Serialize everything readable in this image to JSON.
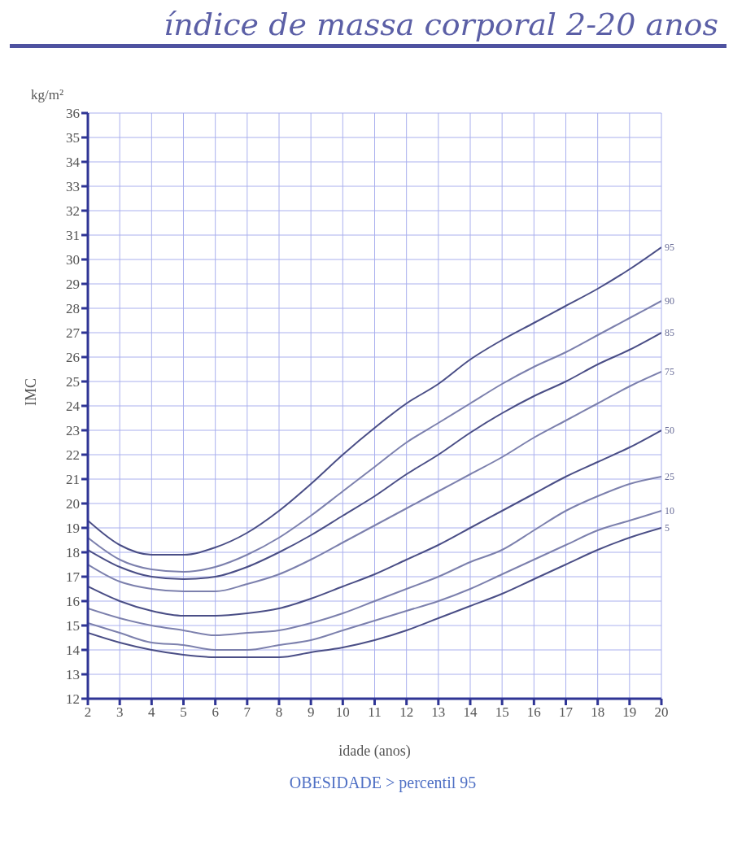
{
  "chart_data": {
    "type": "line",
    "title": "índice de massa corporal 2-20 anos",
    "xlabel": "idade (anos)",
    "ylabel": "IMC",
    "annotations": [
      "kg/m²",
      "OBESIDADE > percentil 95"
    ],
    "x": [
      2,
      3,
      4,
      5,
      6,
      7,
      8,
      9,
      10,
      11,
      12,
      13,
      14,
      15,
      16,
      17,
      18,
      19,
      20
    ],
    "xlim": [
      2,
      20
    ],
    "xticks": [
      2,
      3,
      4,
      5,
      6,
      7,
      8,
      9,
      10,
      11,
      12,
      13,
      14,
      15,
      16,
      17,
      18,
      19,
      20
    ],
    "ylim": [
      12,
      36
    ],
    "yticks": [
      12,
      13,
      14,
      15,
      16,
      17,
      18,
      19,
      20,
      21,
      22,
      23,
      24,
      25,
      26,
      27,
      28,
      29,
      30,
      31,
      32,
      33,
      34,
      35,
      36
    ],
    "grid": true,
    "marker": "none",
    "line_style": "solid",
    "series": [
      {
        "name": "95",
        "color": "#4a4e86",
        "values": [
          19.3,
          18.3,
          17.9,
          17.9,
          18.2,
          18.8,
          19.7,
          20.8,
          22.0,
          23.1,
          24.1,
          24.9,
          25.9,
          26.7,
          27.4,
          28.1,
          28.8,
          29.6,
          30.5
        ]
      },
      {
        "name": "90",
        "color": "#7c80ad",
        "values": [
          18.6,
          17.7,
          17.3,
          17.2,
          17.4,
          17.9,
          18.6,
          19.5,
          20.5,
          21.5,
          22.5,
          23.3,
          24.1,
          24.9,
          25.6,
          26.2,
          26.9,
          27.6,
          28.3
        ]
      },
      {
        "name": "85",
        "color": "#4a4e86",
        "values": [
          18.1,
          17.4,
          17.0,
          16.9,
          17.0,
          17.4,
          18.0,
          18.7,
          19.5,
          20.3,
          21.2,
          22.0,
          22.9,
          23.7,
          24.4,
          25.0,
          25.7,
          26.3,
          27.0
        ]
      },
      {
        "name": "75",
        "color": "#7c80ad",
        "values": [
          17.5,
          16.8,
          16.5,
          16.4,
          16.4,
          16.7,
          17.1,
          17.7,
          18.4,
          19.1,
          19.8,
          20.5,
          21.2,
          21.9,
          22.7,
          23.4,
          24.1,
          24.8,
          25.4
        ]
      },
      {
        "name": "50",
        "color": "#4a4e86",
        "values": [
          16.6,
          16.0,
          15.6,
          15.4,
          15.4,
          15.5,
          15.7,
          16.1,
          16.6,
          17.1,
          17.7,
          18.3,
          19.0,
          19.7,
          20.4,
          21.1,
          21.7,
          22.3,
          23.0
        ]
      },
      {
        "name": "25",
        "color": "#7c80ad",
        "values": [
          15.7,
          15.3,
          15.0,
          14.8,
          14.6,
          14.7,
          14.8,
          15.1,
          15.5,
          16.0,
          16.5,
          17.0,
          17.6,
          18.1,
          18.9,
          19.7,
          20.3,
          20.8,
          21.1
        ]
      },
      {
        "name": "10",
        "color": "#7c80ad",
        "values": [
          15.1,
          14.7,
          14.3,
          14.2,
          14.0,
          14.0,
          14.2,
          14.4,
          14.8,
          15.2,
          15.6,
          16.0,
          16.5,
          17.1,
          17.7,
          18.3,
          18.9,
          19.3,
          19.7
        ]
      },
      {
        "name": "5",
        "color": "#4a4e86",
        "values": [
          14.7,
          14.3,
          14.0,
          13.8,
          13.7,
          13.7,
          13.7,
          13.9,
          14.1,
          14.4,
          14.8,
          15.3,
          15.8,
          16.3,
          16.9,
          17.5,
          18.1,
          18.6,
          19.0
        ]
      }
    ]
  }
}
